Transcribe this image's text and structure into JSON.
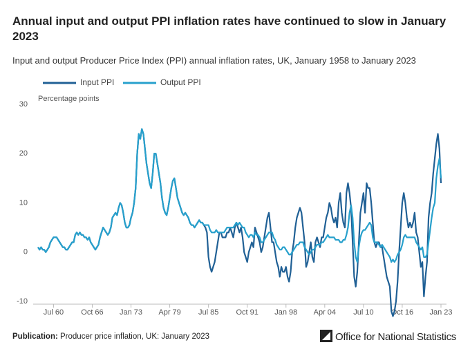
{
  "chart_data": {
    "type": "line",
    "title": "Annual input and output PPI inflation rates have continued to slow in January 2023",
    "subtitle": "Input and output Producer Price Index (PPI) annual inflation rates, UK, January 1958 to January 2023",
    "y_label": "Percentage points",
    "footer_label": "Publication:",
    "footer_text": "Producer price inflation, UK: January 2023",
    "source": "Office for National Statistics",
    "ylim": [
      -10,
      30
    ],
    "yticks": [
      -10,
      0,
      10,
      20,
      30
    ],
    "grid": false,
    "legend": "top-left",
    "xticks": [
      "Jul 60",
      "Oct 66",
      "Jan 73",
      "Apr 79",
      "Jul 85",
      "Oct 91",
      "Jan 98",
      "Apr 04",
      "Jul 10",
      "Oct 16",
      "Jan 23"
    ],
    "x": [
      "Jan 58",
      "Apr 58",
      "Jul 58",
      "Oct 58",
      "Jan 59",
      "Apr 59",
      "Jul 59",
      "Oct 59",
      "Jan 60",
      "Apr 60",
      "Jul 60",
      "Oct 60",
      "Jan 61",
      "Apr 61",
      "Jul 61",
      "Oct 61",
      "Jan 62",
      "Apr 62",
      "Jul 62",
      "Oct 62",
      "Jan 63",
      "Apr 63",
      "Jul 63",
      "Oct 63",
      "Jan 64",
      "Apr 64",
      "Jul 64",
      "Oct 64",
      "Jan 65",
      "Apr 65",
      "Jul 65",
      "Oct 65",
      "Jan 66",
      "Apr 66",
      "Jul 66",
      "Oct 66",
      "Jan 67",
      "Apr 67",
      "Jul 67",
      "Oct 67",
      "Jan 68",
      "Apr 68",
      "Jul 68",
      "Oct 68",
      "Jan 69",
      "Apr 69",
      "Jul 69",
      "Oct 69",
      "Jan 70",
      "Apr 70",
      "Jul 70",
      "Oct 70",
      "Jan 71",
      "Apr 71",
      "Jul 71",
      "Oct 71",
      "Jan 72",
      "Apr 72",
      "Jul 72",
      "Oct 72",
      "Jan 73",
      "Apr 73",
      "Jul 73",
      "Oct 73",
      "Jan 74",
      "Apr 74",
      "Jul 74",
      "Oct 74",
      "Jan 75",
      "Apr 75",
      "Jul 75",
      "Oct 75",
      "Jan 76",
      "Apr 76",
      "Jul 76",
      "Oct 76",
      "Jan 77",
      "Apr 77",
      "Jul 77",
      "Oct 77",
      "Jan 78",
      "Apr 78",
      "Jul 78",
      "Oct 78",
      "Jan 79",
      "Apr 79",
      "Jul 79",
      "Oct 79",
      "Jan 80",
      "Apr 80",
      "Jul 80",
      "Oct 80",
      "Jan 81",
      "Apr 81",
      "Jul 81",
      "Oct 81",
      "Jan 82",
      "Apr 82",
      "Jul 82",
      "Oct 82",
      "Jan 83",
      "Apr 83",
      "Jul 83",
      "Oct 83",
      "Jan 84",
      "Apr 84",
      "Jul 84",
      "Oct 84",
      "Jan 85",
      "Apr 85",
      "Jul 85",
      "Oct 85",
      "Jan 86",
      "Apr 86",
      "Jul 86",
      "Oct 86",
      "Jan 87",
      "Apr 87",
      "Jul 87",
      "Oct 87",
      "Jan 88",
      "Apr 88",
      "Jul 88",
      "Oct 88",
      "Jan 89",
      "Apr 89",
      "Jul 89",
      "Oct 89",
      "Jan 90",
      "Apr 90",
      "Jul 90",
      "Oct 90",
      "Jan 91",
      "Apr 91",
      "Jul 91",
      "Oct 91",
      "Jan 92",
      "Apr 92",
      "Jul 92",
      "Oct 92",
      "Jan 93",
      "Apr 93",
      "Jul 93",
      "Oct 93",
      "Jan 94",
      "Apr 94",
      "Jul 94",
      "Oct 94",
      "Jan 95",
      "Apr 95",
      "Jul 95",
      "Oct 95",
      "Jan 96",
      "Apr 96",
      "Jul 96",
      "Oct 96",
      "Jan 97",
      "Apr 97",
      "Jul 97",
      "Oct 97",
      "Jan 98",
      "Apr 98",
      "Jul 98",
      "Oct 98",
      "Jan 99",
      "Apr 99",
      "Jul 99",
      "Oct 99",
      "Jan 00",
      "Apr 00",
      "Jul 00",
      "Oct 00",
      "Jan 01",
      "Apr 01",
      "Jul 01",
      "Oct 01",
      "Jan 02",
      "Apr 02",
      "Jul 02",
      "Oct 02",
      "Jan 03",
      "Apr 03",
      "Jul 03",
      "Oct 03",
      "Jan 04",
      "Apr 04",
      "Jul 04",
      "Oct 04",
      "Jan 05",
      "Apr 05",
      "Jul 05",
      "Oct 05",
      "Jan 06",
      "Apr 06",
      "Jul 06",
      "Oct 06",
      "Jan 07",
      "Apr 07",
      "Jul 07",
      "Oct 07",
      "Jan 08",
      "Apr 08",
      "Jul 08",
      "Oct 08",
      "Jan 09",
      "Apr 09",
      "Jul 09",
      "Oct 09",
      "Jan 10",
      "Apr 10",
      "Jul 10",
      "Oct 10",
      "Jan 11",
      "Apr 11",
      "Jul 11",
      "Oct 11",
      "Jan 12",
      "Apr 12",
      "Jul 12",
      "Oct 12",
      "Jan 13",
      "Apr 13",
      "Jul 13",
      "Oct 13",
      "Jan 14",
      "Apr 14",
      "Jul 14",
      "Oct 14",
      "Jan 15",
      "Apr 15",
      "Jul 15",
      "Oct 15",
      "Jan 16",
      "Apr 16",
      "Jul 16",
      "Oct 16",
      "Jan 17",
      "Apr 17",
      "Jul 17",
      "Oct 17",
      "Jan 18",
      "Apr 18",
      "Jul 18",
      "Oct 18",
      "Jan 19",
      "Apr 19",
      "Jul 19",
      "Oct 19",
      "Jan 20",
      "Apr 20",
      "Jul 20",
      "Oct 20",
      "Jan 21",
      "Apr 21",
      "Jul 21",
      "Oct 21",
      "Jan 22",
      "Apr 22",
      "Jul 22",
      "Oct 22",
      "Jan 23"
    ],
    "series": [
      {
        "name": "Input PPI",
        "color": "#206095",
        "values": [
          1,
          0.5,
          1,
          0.5,
          0.5,
          0,
          0.5,
          1,
          2,
          2.5,
          3,
          3,
          3,
          2.5,
          2,
          1.5,
          1,
          1,
          0.5,
          0.5,
          1,
          1.5,
          2,
          2,
          3.5,
          4,
          3.5,
          4,
          3.5,
          3.5,
          3,
          3,
          2.5,
          3,
          2,
          1.5,
          1,
          0.5,
          1,
          1.5,
          3,
          4,
          5,
          4.5,
          4,
          3.5,
          4,
          5,
          7,
          7.5,
          8,
          7.5,
          9,
          10,
          9.5,
          8,
          6,
          5,
          5,
          5.5,
          7,
          8,
          10,
          13,
          20,
          24,
          23,
          25,
          24,
          21,
          18,
          16,
          14,
          13,
          16,
          20,
          20,
          18,
          16,
          14,
          11,
          9,
          8,
          7.5,
          9,
          11,
          13,
          14.5,
          15,
          13,
          11,
          10,
          9,
          8,
          7.5,
          8,
          7.5,
          7,
          6,
          5.5,
          5.5,
          5,
          5.5,
          6,
          6.5,
          6,
          6,
          5.5,
          5,
          4,
          -1,
          -3,
          -4,
          -3,
          -2,
          0,
          2,
          4,
          4,
          3,
          3,
          3,
          4,
          4,
          5,
          4,
          3,
          5,
          6,
          5,
          4,
          5,
          3,
          0,
          -1,
          -2,
          0,
          1,
          2,
          1,
          5,
          4,
          3,
          2,
          0,
          1,
          3,
          5,
          7,
          8,
          5,
          2,
          2,
          0,
          -2,
          -3,
          -5,
          -3,
          -4,
          -4,
          -3,
          -5,
          -6,
          -4,
          0,
          2,
          5,
          7,
          8,
          9,
          8,
          5,
          2,
          -3,
          -2,
          0,
          2,
          -1,
          -2,
          2,
          3,
          2,
          1,
          3,
          3,
          5,
          7,
          8,
          10,
          9,
          7,
          6,
          7,
          5,
          10,
          12,
          8,
          6,
          5,
          12,
          14,
          12,
          9,
          2,
          -5,
          -7,
          -4,
          2,
          8,
          10,
          12,
          8,
          14,
          13,
          13,
          10,
          6,
          2,
          1,
          2,
          2,
          1,
          1,
          -1,
          -3,
          -5,
          -6,
          -7,
          -12,
          -13,
          -12,
          -10,
          -6,
          0,
          5,
          10,
          12,
          10,
          7,
          5,
          6,
          5,
          6,
          8,
          4,
          3,
          0,
          -3,
          -2,
          -9,
          -5,
          -2,
          7,
          10,
          12,
          16,
          19,
          22,
          24,
          21,
          14
        ]
      },
      {
        "name": "Output PPI",
        "color": "#27a0cc",
        "values": [
          1,
          0.5,
          1,
          0.5,
          0.5,
          0,
          0.5,
          1,
          2,
          2.5,
          3,
          3,
          3,
          2.5,
          2,
          1.5,
          1,
          1,
          0.5,
          0.5,
          1,
          1.5,
          2,
          2,
          3.5,
          4,
          3.5,
          4,
          3.5,
          3.5,
          3,
          3,
          2.5,
          3,
          2,
          1.5,
          1,
          0.5,
          1,
          1.5,
          3,
          4,
          5,
          4.5,
          4,
          3.5,
          4,
          5,
          7,
          7.5,
          8,
          7.5,
          9,
          10,
          9.5,
          8,
          6,
          5,
          5,
          5.5,
          7,
          8,
          10,
          13,
          20,
          24,
          23,
          25,
          24,
          21,
          18,
          16,
          14,
          13,
          16,
          20,
          20,
          18,
          16,
          14,
          11,
          9,
          8,
          7.5,
          9,
          11,
          13,
          14.5,
          15,
          13,
          11,
          10,
          9,
          8,
          7.5,
          8,
          7.5,
          7,
          6,
          5.5,
          5.5,
          5,
          5.5,
          6,
          6.5,
          6,
          6,
          5.5,
          5.5,
          5.5,
          5.5,
          4.5,
          4,
          4,
          4,
          4.5,
          4,
          4,
          4,
          4,
          4,
          4.5,
          5,
          5,
          5,
          5,
          5,
          5.5,
          6,
          5.5,
          6,
          5.5,
          5,
          5,
          4,
          3.5,
          3,
          3.5,
          3.5,
          3,
          4,
          3.5,
          3.5,
          3,
          2,
          2,
          2.5,
          3,
          3.5,
          4,
          4,
          4,
          3,
          2.5,
          1.5,
          1,
          0.5,
          0.5,
          1,
          1,
          0.5,
          0,
          -0.5,
          -0.5,
          0,
          0.5,
          1,
          1.5,
          1.5,
          2,
          2,
          2,
          1,
          0.5,
          0,
          -0.5,
          0,
          0.5,
          0.5,
          1,
          1.5,
          1.5,
          1.5,
          2,
          2,
          2.5,
          3,
          3.5,
          3,
          3,
          3,
          3,
          2.5,
          2.5,
          2.5,
          2,
          2,
          2.5,
          2.5,
          3.5,
          5,
          8,
          9.5,
          7,
          2,
          -1,
          -2,
          1,
          3,
          4,
          4.5,
          4.5,
          5,
          5.5,
          6,
          5.5,
          3,
          2,
          2,
          2,
          1.5,
          1,
          1.5,
          1,
          0.5,
          0,
          -0.5,
          -1,
          -2,
          -1.5,
          -2,
          -1.5,
          -0.5,
          0,
          0.5,
          1.5,
          3,
          3.5,
          3,
          3,
          3,
          3,
          3,
          3,
          2,
          1.5,
          1,
          0.5,
          1,
          -1,
          -1,
          -0.5,
          2,
          4.5,
          7,
          9,
          10,
          15,
          17.5,
          19,
          15
        ]
      }
    ]
  }
}
